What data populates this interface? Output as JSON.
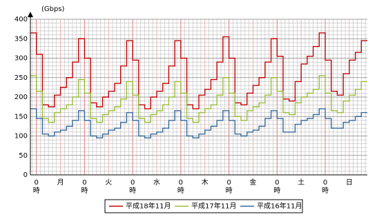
{
  "chart_data": {
    "type": "step-line",
    "y_unit": "(Gbps)",
    "ylim": [
      0,
      400
    ],
    "yticks": [
      0,
      50,
      100,
      150,
      200,
      250,
      300,
      350,
      400
    ],
    "xlim": [
      -3,
      165
    ],
    "xticks": [
      {
        "value": 0,
        "label": "0時"
      },
      {
        "value": 24,
        "label": "0時"
      },
      {
        "value": 48,
        "label": "0時"
      },
      {
        "value": 72,
        "label": "0時"
      },
      {
        "value": 96,
        "label": "0時"
      },
      {
        "value": 120,
        "label": "0時"
      },
      {
        "value": 144,
        "label": "0時"
      }
    ],
    "xticks_minor": [
      {
        "value": 12,
        "label": "月"
      },
      {
        "value": 36,
        "label": "火"
      },
      {
        "value": 60,
        "label": "水"
      },
      {
        "value": 84,
        "label": "木"
      },
      {
        "value": 108,
        "label": "金"
      },
      {
        "value": 132,
        "label": "土"
      },
      {
        "value": 156,
        "label": "日"
      }
    ],
    "grid": true,
    "legend": "bottom",
    "x": [
      -3,
      0,
      3,
      6,
      9,
      12,
      15,
      18,
      21,
      24,
      27,
      30,
      33,
      36,
      39,
      42,
      45,
      48,
      51,
      54,
      57,
      60,
      63,
      66,
      69,
      72,
      75,
      78,
      81,
      84,
      87,
      90,
      93,
      96,
      99,
      102,
      105,
      108,
      111,
      114,
      117,
      120,
      123,
      126,
      129,
      132,
      135,
      138,
      141,
      144,
      147,
      150,
      153,
      156,
      159,
      162
    ],
    "series": [
      {
        "name": "平成18年11月",
        "color": "#c00000",
        "values": [
          365,
          310,
          180,
          175,
          205,
          225,
          250,
          290,
          350,
          300,
          185,
          175,
          200,
          215,
          235,
          280,
          345,
          295,
          180,
          170,
          200,
          215,
          235,
          280,
          345,
          300,
          180,
          170,
          205,
          220,
          245,
          290,
          355,
          300,
          185,
          180,
          210,
          230,
          250,
          290,
          350,
          305,
          195,
          190,
          240,
          285,
          305,
          330,
          365,
          295,
          215,
          205,
          260,
          295,
          315,
          345
        ]
      },
      {
        "name": "平成17年11月",
        "color": "#99bb33",
        "values": [
          255,
          215,
          145,
          135,
          160,
          170,
          180,
          200,
          245,
          210,
          145,
          135,
          155,
          165,
          175,
          195,
          240,
          205,
          145,
          135,
          155,
          165,
          180,
          200,
          240,
          210,
          145,
          135,
          160,
          170,
          180,
          205,
          250,
          210,
          150,
          140,
          165,
          175,
          185,
          205,
          250,
          215,
          160,
          155,
          185,
          200,
          210,
          220,
          255,
          210,
          165,
          160,
          190,
          205,
          220,
          240
        ]
      },
      {
        "name": "平成16年11月",
        "color": "#336699",
        "values": [
          170,
          145,
          105,
          100,
          110,
          115,
          125,
          140,
          165,
          140,
          100,
          95,
          105,
          115,
          120,
          135,
          160,
          140,
          100,
          95,
          105,
          110,
          120,
          140,
          165,
          140,
          100,
          95,
          105,
          115,
          125,
          140,
          165,
          140,
          105,
          100,
          110,
          115,
          125,
          145,
          165,
          145,
          110,
          110,
          130,
          140,
          145,
          155,
          170,
          145,
          120,
          120,
          135,
          140,
          150,
          160
        ]
      }
    ]
  }
}
